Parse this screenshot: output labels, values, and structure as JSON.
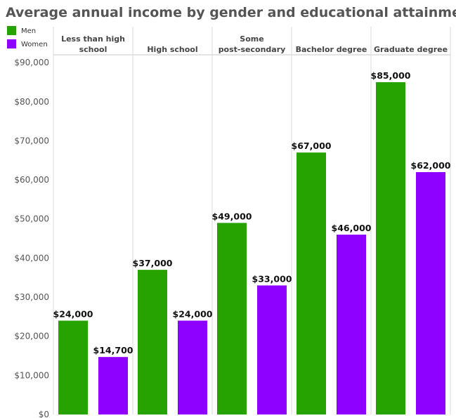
{
  "chart_data": {
    "type": "bar",
    "title": "Average annual income by gender and educational attainment",
    "categories": [
      [
        "Less than high",
        "school"
      ],
      [
        "High school"
      ],
      [
        "Some",
        "post-secondary"
      ],
      [
        "Bachelor degree"
      ],
      [
        "Graduate degree"
      ]
    ],
    "series": [
      {
        "name": "Men",
        "color": "#27a300",
        "values": [
          24000,
          37000,
          49000,
          67000,
          85000
        ]
      },
      {
        "name": "Women",
        "color": "#8e00ff",
        "values": [
          14700,
          24000,
          33000,
          46000,
          62000
        ]
      }
    ],
    "data_labels": [
      [
        "$24,000",
        "$37,000",
        "$49,000",
        "$67,000",
        "$85,000"
      ],
      [
        "$14,700",
        "$24,000",
        "$33,000",
        "$46,000",
        "$62,000"
      ]
    ],
    "yticks": [
      0,
      10000,
      20000,
      30000,
      40000,
      50000,
      60000,
      70000,
      80000,
      90000
    ],
    "ytick_labels": [
      "$0",
      "$10,000",
      "$20,000",
      "$30,000",
      "$40,000",
      "$50,000",
      "$60,000",
      "$70,000",
      "$80,000",
      "$90,000"
    ],
    "ylim": [
      0,
      92000
    ],
    "legend_position": "top-left",
    "grid": false
  }
}
